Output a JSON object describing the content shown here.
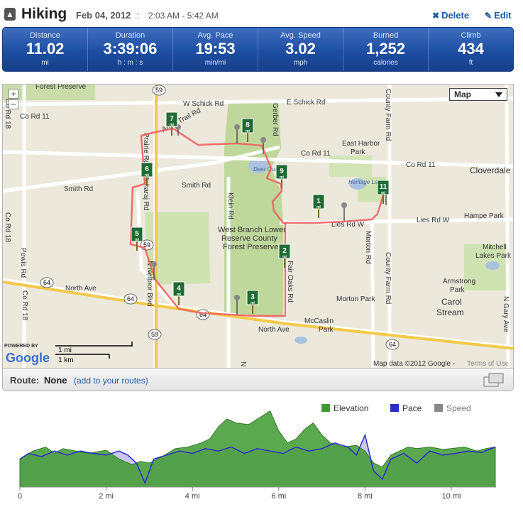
{
  "header": {
    "activity": "Hiking",
    "date": "Feb 04, 2012",
    "separator": "::",
    "time_range": "2:03 AM - 5:42 AM",
    "delete_label": "Delete",
    "edit_label": "Edit",
    "delete_icon": "x-icon",
    "edit_icon": "pencil-icon"
  },
  "stats": [
    {
      "label": "Distance",
      "value": "11.02",
      "unit": "mi"
    },
    {
      "label": "Duration",
      "value": "3:39:06",
      "unit": "h : m : s"
    },
    {
      "label": "Avg. Pace",
      "value": "19:53",
      "unit": "min/mi"
    },
    {
      "label": "Avg. Speed",
      "value": "3.02",
      "unit": "mph"
    },
    {
      "label": "Burned",
      "value": "1,252",
      "unit": "calories"
    },
    {
      "label": "Climb",
      "value": "434",
      "unit": "ft"
    }
  ],
  "map": {
    "type_selector": "Map",
    "zoom_in": "+",
    "zoom_out": "−",
    "attribution": "Map data ©2012 Google -",
    "terms": "Terms of Use",
    "powered_by": "POWERED BY",
    "scale_mi": "1 mi",
    "scale_km": "1 km",
    "labels": {
      "forest_preserve": "Forest Preserve",
      "w_schick": "W Schick Rd",
      "e_schick": "E Schick Rd",
      "co_rd_11_left": "Co Rd 11",
      "co_rd_11_mid": "Co Rd 11",
      "co_rd_11_right": "Co Rd 11",
      "cloverdale": "Cloverdale",
      "smith_left": "Smith Rd",
      "smith_mid": "Smith Rd",
      "east_harbor": "East Harbor",
      "park": "Park",
      "deer_quarry": "Deer Quarry",
      "heritage_lake": "Heritage Lake",
      "hampe_park": "Hampe Park",
      "lies_rd_w": "Lies Rd W",
      "lies_rd_mid": "Lies Rd W",
      "mitchell": "Mitchell",
      "lakes_park": "Lakes Park",
      "wbl1": "West Branch Lower",
      "wbl2": "Reserve County",
      "wbl3": "Forest Preserve",
      "armstrong": "Armstrong",
      "carol": "Carol",
      "stream": "Stream",
      "morton_park": "Morton Park",
      "mccaslin": "McCaslin",
      "north_ave_left": "North Ave",
      "north_ave_mid": "North Ave",
      "n_prince": "N Prince",
      "co_rd_18_top": "Co Rd 18",
      "co_rd_18_left": "Co Rd 18",
      "powis": "Powis Rd",
      "co_rd_18_bottom": "Co Rd 18",
      "armytrail": "Army Trail Rd",
      "klein": "Klein Rd",
      "gerber": "Gerber Rd",
      "morton_rd": "Morton Rd",
      "county_farm": "County Farm Rd",
      "county_farm_low": "County Farm Rd",
      "prairie": "Prairie Rd",
      "maharaj": "Maharaj Rd",
      "neltnor": "N Neltnor Blvd",
      "fair_oaks": "Fair Oaks Rd",
      "n_gary": "N Gary Ave",
      "route_59_top": "59",
      "route_59_mid": "59",
      "route_59_bottom": "59",
      "route_64_left": "64",
      "route_64_mid": "64",
      "route_64_right": "64",
      "route_64_far": "64"
    },
    "mile_markers": [
      {
        "number": "1",
        "unit": "mi"
      },
      {
        "number": "2",
        "unit": "mi"
      },
      {
        "number": "3",
        "unit": "mi"
      },
      {
        "number": "4",
        "unit": "mi"
      },
      {
        "number": "5",
        "unit": "mi"
      },
      {
        "number": "6",
        "unit": "mi"
      },
      {
        "number": "7",
        "unit": "mi"
      },
      {
        "number": "8",
        "unit": "mi"
      },
      {
        "number": "9",
        "unit": "mi"
      },
      {
        "number": "11",
        "unit": "mi"
      }
    ]
  },
  "route": {
    "label": "Route:",
    "value": "None",
    "add_link": "(add to your routes)"
  },
  "chart_data": {
    "type": "area",
    "legend_position": "top-right",
    "series": [
      {
        "name": "Elevation",
        "color": "#3e9a2f"
      },
      {
        "name": "Pace",
        "color": "#2b2bcc"
      },
      {
        "name": "Speed",
        "color": "#888888"
      }
    ],
    "x_unit": "mi",
    "xlim": [
      0,
      11.02
    ],
    "x_ticks": [
      "0",
      "2 mi",
      "4 mi",
      "6 mi",
      "8 mi",
      "10 mi"
    ],
    "x_tick_values": [
      0,
      2,
      4,
      6,
      8,
      10
    ],
    "elevation_x": [
      0,
      0.3,
      0.6,
      0.8,
      1.0,
      1.3,
      1.6,
      2.0,
      2.3,
      2.6,
      2.8,
      3.0,
      3.3,
      3.6,
      3.9,
      4.2,
      4.4,
      4.6,
      4.8,
      5.0,
      5.3,
      5.6,
      5.8,
      6.0,
      6.2,
      6.4,
      6.6,
      6.8,
      7.0,
      7.2,
      7.5,
      7.8,
      8.0,
      8.2,
      8.4,
      8.6,
      8.8,
      9.0,
      9.2,
      9.5,
      9.8,
      10.0,
      10.3,
      10.6,
      10.8,
      11.02
    ],
    "elevation_y": [
      0.35,
      0.45,
      0.5,
      0.42,
      0.48,
      0.45,
      0.42,
      0.46,
      0.35,
      0.28,
      0.32,
      0.3,
      0.38,
      0.48,
      0.5,
      0.55,
      0.6,
      0.75,
      0.85,
      0.8,
      0.78,
      0.88,
      0.95,
      0.7,
      0.55,
      0.6,
      0.72,
      0.8,
      0.65,
      0.55,
      0.5,
      0.52,
      0.45,
      0.3,
      0.25,
      0.4,
      0.45,
      0.5,
      0.48,
      0.5,
      0.47,
      0.48,
      0.5,
      0.45,
      0.48,
      0.5
    ],
    "pace_x": [
      0,
      0.2,
      0.5,
      0.8,
      1.1,
      1.4,
      1.7,
      2.0,
      2.3,
      2.5,
      2.7,
      2.9,
      3.1,
      3.4,
      3.7,
      4.0,
      4.3,
      4.6,
      4.9,
      5.2,
      5.5,
      5.8,
      6.1,
      6.4,
      6.7,
      7.0,
      7.3,
      7.6,
      7.8,
      8.0,
      8.2,
      8.4,
      8.6,
      8.9,
      9.2,
      9.5,
      9.8,
      10.1,
      10.4,
      10.7,
      11.02
    ],
    "pace_y": [
      0.35,
      0.42,
      0.38,
      0.45,
      0.4,
      0.45,
      0.42,
      0.4,
      0.45,
      0.4,
      0.3,
      0.05,
      0.35,
      0.4,
      0.45,
      0.42,
      0.48,
      0.45,
      0.5,
      0.42,
      0.48,
      0.45,
      0.42,
      0.5,
      0.45,
      0.48,
      0.55,
      0.5,
      0.4,
      0.65,
      0.2,
      0.1,
      0.35,
      0.42,
      0.3,
      0.45,
      0.4,
      0.42,
      0.45,
      0.43,
      0.5
    ]
  }
}
